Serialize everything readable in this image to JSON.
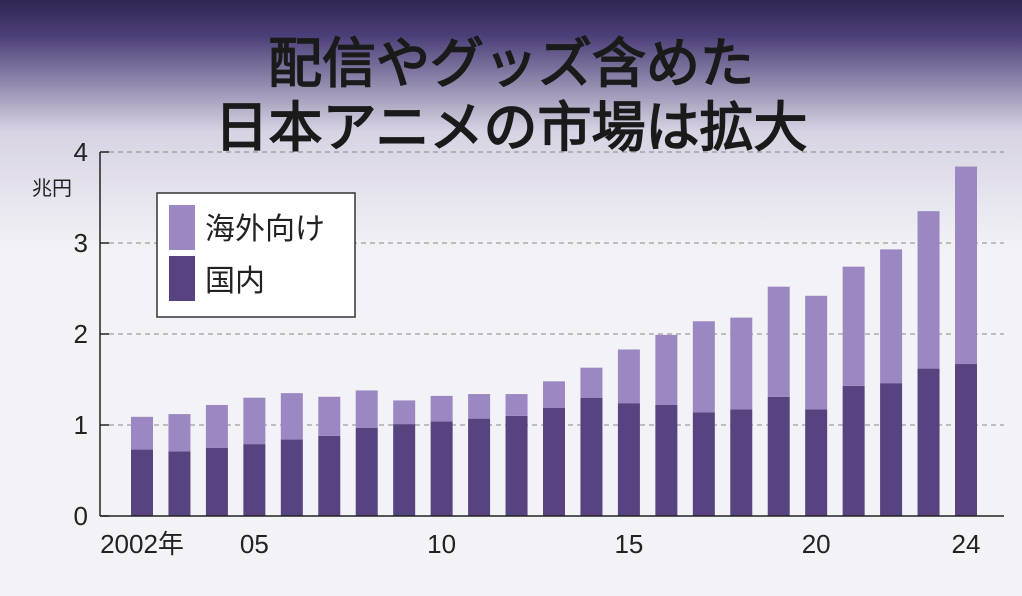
{
  "chart_data": {
    "type": "bar",
    "stacked": true,
    "title_lines": [
      "配信やグッズ含めた",
      "日本アニメの市場は拡大"
    ],
    "unit_label": "兆円",
    "ylim": [
      0,
      4
    ],
    "yticks": [
      0,
      1,
      2,
      3,
      4
    ],
    "x_tick_labels": [
      {
        "index": 0,
        "label": "2002年"
      },
      {
        "index": 3,
        "label": "05"
      },
      {
        "index": 8,
        "label": "10"
      },
      {
        "index": 13,
        "label": "15"
      },
      {
        "index": 18,
        "label": "20"
      },
      {
        "index": 22,
        "label": "24"
      }
    ],
    "years": [
      2002,
      2003,
      2004,
      2005,
      2006,
      2007,
      2008,
      2009,
      2010,
      2011,
      2012,
      2013,
      2014,
      2015,
      2016,
      2017,
      2018,
      2019,
      2020,
      2021,
      2022,
      2023,
      2024
    ],
    "series": [
      {
        "name": "国内",
        "color": "#57437f",
        "values": [
          0.73,
          0.71,
          0.75,
          0.79,
          0.84,
          0.88,
          0.97,
          1.01,
          1.04,
          1.07,
          1.1,
          1.19,
          1.3,
          1.24,
          1.22,
          1.14,
          1.17,
          1.31,
          1.17,
          1.43,
          1.46,
          1.62,
          1.67
        ]
      },
      {
        "name": "海外向け",
        "color": "#9b88c2",
        "values": [
          0.36,
          0.41,
          0.47,
          0.51,
          0.51,
          0.43,
          0.41,
          0.26,
          0.28,
          0.27,
          0.24,
          0.29,
          0.33,
          0.59,
          0.77,
          1.0,
          1.01,
          1.21,
          1.25,
          1.31,
          1.47,
          1.73,
          2.17
        ]
      }
    ],
    "legend": [
      "海外向け",
      "国内"
    ],
    "grid": true,
    "legend_position": "top-left"
  },
  "colors": {
    "domestic": "#57437f",
    "overseas": "#9b88c2",
    "header_top": "#2f2652",
    "background": "#f3f2f6"
  }
}
